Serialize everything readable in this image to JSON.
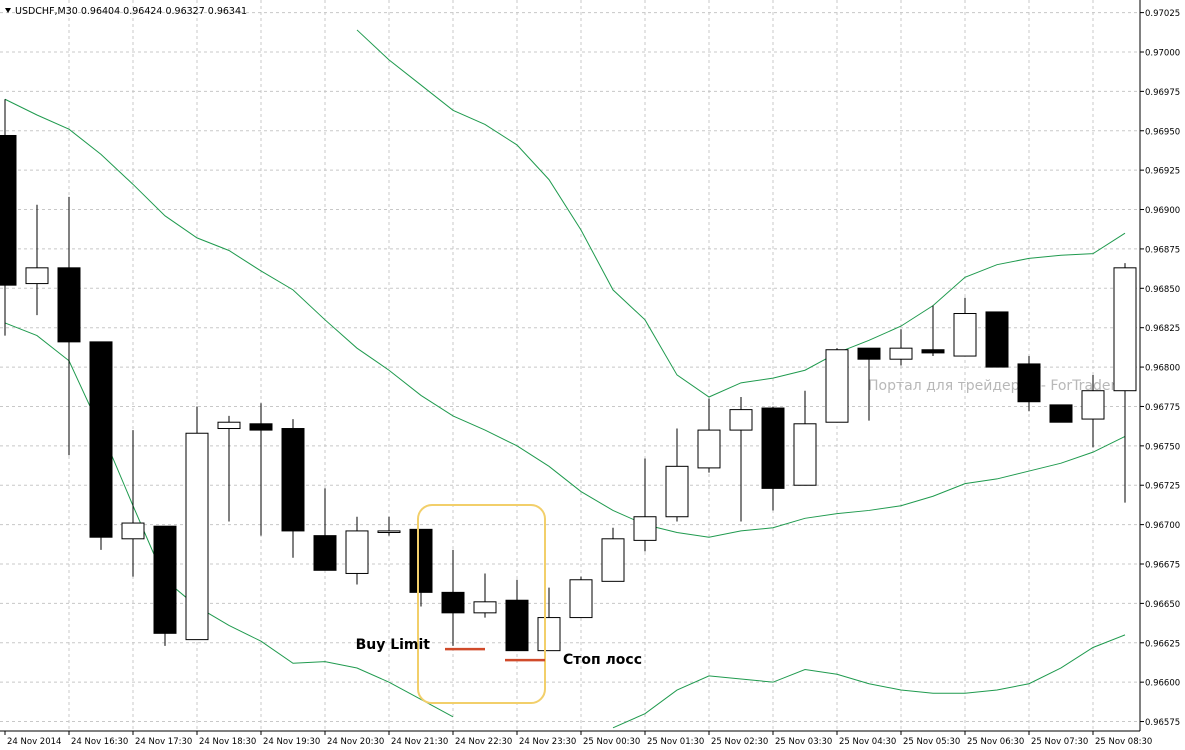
{
  "chart_data": {
    "type": "candlestick",
    "title": "USDCHF,M30  0.96404 0.96424 0.96327 0.96341",
    "watermark": "Портал для трейдеров - ForTrader.ru",
    "categories": [
      "24 Nov 2014",
      null,
      "24 Nov 16:30",
      null,
      "24 Nov 17:30",
      null,
      "24 Nov 18:30",
      null,
      "24 Nov 19:30",
      null,
      "24 Nov 20:30",
      null,
      "24 Nov 21:30",
      null,
      "24 Nov 22:30",
      null,
      "24 Nov 23:30",
      null,
      "25 Nov 00:30",
      null,
      "25 Nov 01:30",
      null,
      "25 Nov 02:30",
      null,
      "25 Nov 03:30",
      null,
      "25 Nov 04:30",
      null,
      "25 Nov 05:30",
      null,
      "25 Nov 06:30",
      null,
      "25 Nov 07:30",
      null,
      "25 Nov 08:30",
      null
    ],
    "open": [
      0.96947,
      0.96853,
      0.96863,
      0.96816,
      0.96691,
      0.96699,
      0.96627,
      0.96761,
      0.96764,
      0.96761,
      0.96693,
      0.96669,
      0.96695,
      0.96697,
      0.96657,
      0.96644,
      0.96652,
      0.9662,
      0.96641,
      0.96664,
      0.9669,
      0.96705,
      0.96736,
      0.9676,
      0.96774,
      0.96725,
      0.96765,
      0.96812,
      0.96805,
      0.96811,
      0.96807,
      0.96835,
      0.96802,
      0.96776,
      0.96767,
      0.96785
    ],
    "high": [
      0.9697,
      0.96903,
      0.96908,
      0.96816,
      0.9676,
      0.96699,
      0.96775,
      0.96769,
      0.96777,
      0.96767,
      0.96723,
      0.96705,
      0.96705,
      0.96697,
      0.96684,
      0.96669,
      0.96665,
      0.9666,
      0.96667,
      0.96698,
      0.96742,
      0.96761,
      0.9678,
      0.96781,
      0.96775,
      0.96785,
      0.96812,
      0.96812,
      0.96824,
      0.96839,
      0.96844,
      0.96835,
      0.96807,
      0.96776,
      0.96795,
      0.96866
    ],
    "low": [
      0.9682,
      0.96833,
      0.96744,
      0.96684,
      0.96667,
      0.96623,
      0.96627,
      0.96702,
      0.96693,
      0.96679,
      0.96671,
      0.96662,
      0.96693,
      0.96648,
      0.96623,
      0.96641,
      0.9662,
      0.9662,
      0.96641,
      0.96664,
      0.96683,
      0.96702,
      0.96733,
      0.96702,
      0.96709,
      0.96725,
      0.96765,
      0.96766,
      0.96801,
      0.96807,
      0.96807,
      0.968,
      0.96772,
      0.96765,
      0.96749,
      0.96714
    ],
    "close": [
      0.96852,
      0.96863,
      0.96816,
      0.96692,
      0.96701,
      0.96631,
      0.96758,
      0.96765,
      0.9676,
      0.96696,
      0.96671,
      0.96696,
      0.96696,
      0.96657,
      0.96644,
      0.96651,
      0.9662,
      0.96641,
      0.96665,
      0.96691,
      0.96705,
      0.96737,
      0.9676,
      0.96773,
      0.96723,
      0.96764,
      0.96811,
      0.96805,
      0.96812,
      0.96809,
      0.96834,
      0.968,
      0.96778,
      0.96765,
      0.96785,
      0.96863
    ],
    "up_color": "#ffffff",
    "down_color": "#000000",
    "bands": [
      {
        "color": "#1f9a4e",
        "values": [
          null,
          null,
          null,
          null,
          null,
          null,
          null,
          null,
          null,
          null,
          null,
          0.97014,
          0.96995,
          0.96979,
          0.96963,
          0.96954,
          0.96941,
          0.96919,
          0.96887,
          0.96849,
          0.9683,
          0.96795,
          0.96781,
          0.9679,
          0.96793,
          0.96798,
          0.96809,
          0.96817,
          0.96826,
          0.96839,
          0.96857,
          0.96865,
          0.96869,
          0.96871,
          0.96872,
          0.96885
        ]
      },
      {
        "color": "#1f9a4e",
        "values": [
          0.9697,
          0.9696,
          0.96951,
          0.96935,
          0.96916,
          0.96896,
          0.96882,
          0.96874,
          0.96861,
          0.96849,
          0.9683,
          0.96812,
          0.96798,
          0.96782,
          0.96769,
          0.9676,
          0.9675,
          0.96737,
          0.96721,
          0.96709,
          0.967,
          0.96695,
          0.96692,
          0.96696,
          0.96698,
          0.96704,
          0.96707,
          0.96709,
          0.96712,
          0.96718,
          0.96726,
          0.96729,
          0.96734,
          0.96739,
          0.96746,
          0.96756
        ]
      },
      {
        "color": "#1f9a4e",
        "values": [
          0.96828,
          0.9682,
          0.96804,
          0.9676,
          0.96712,
          0.96665,
          0.96648,
          0.96636,
          0.96626,
          0.96612,
          0.96613,
          0.96609,
          0.966,
          0.96589,
          0.96578,
          null,
          null,
          null,
          null,
          0.96571,
          0.9658,
          0.96595,
          0.96604,
          0.96602,
          0.966,
          0.96608,
          0.96605,
          0.96599,
          0.96595,
          0.96593,
          0.96593,
          0.96595,
          0.96599,
          0.96609,
          0.96622,
          0.9663
        ]
      }
    ],
    "annotations": [
      {
        "text": "Buy Limit",
        "value": 0.96621,
        "color": "#d04a2a"
      },
      {
        "text": "Стоп лосс",
        "value": 0.96614,
        "color": "#d04a2a"
      }
    ],
    "ylim": [
      0.96569,
      0.97033
    ],
    "yticks": [
      0.96575,
      {
        "value": 0.966,
        "label": "0.96600"
      },
      0.96625,
      {
        "value": 0.9665,
        "label": "0.96650"
      },
      0.96675,
      {
        "value": 0.967,
        "label": "0.96700"
      },
      0.96725,
      {
        "value": 0.9675,
        "label": "0.96750"
      },
      0.96775,
      {
        "value": 0.968,
        "label": "0.96800"
      },
      0.96825,
      {
        "value": 0.9685,
        "label": "0.96850"
      },
      0.96875,
      {
        "value": 0.969,
        "label": "0.96900"
      },
      0.96925,
      {
        "value": 0.9695,
        "label": "0.96950"
      },
      0.96975,
      {
        "value": 0.97,
        "label": "0.97000"
      },
      0.97025
    ],
    "grid": true
  }
}
